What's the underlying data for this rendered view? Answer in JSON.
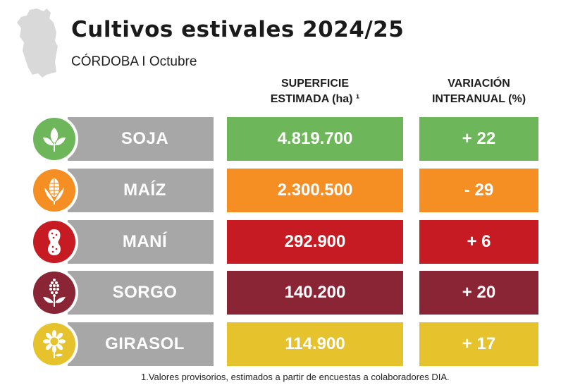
{
  "header": {
    "title": "Cultivos estivales 2024/25",
    "subtitle": "CÓRDOBA I Octubre",
    "map_icon": "cordoba-map-icon"
  },
  "columns": {
    "superficie_line1": "SUPERFICIE",
    "superficie_line2": "ESTIMADA (ha) ¹",
    "variacion_line1": "VARIACIÓN",
    "variacion_line2": "INTERANUAL (%)"
  },
  "crops": [
    {
      "name": "SOJA",
      "superficie": "4.819.700",
      "variacion": "+ 22",
      "color": "#6db75a",
      "icon": "soy-leaves-icon"
    },
    {
      "name": "MAÍZ",
      "superficie": "2.300.500",
      "variacion": "- 29",
      "color": "#f58f23",
      "icon": "corn-icon"
    },
    {
      "name": "MANÍ",
      "superficie": "292.900",
      "variacion": "+ 6",
      "color": "#c61b23",
      "icon": "peanut-icon"
    },
    {
      "name": "SORGO",
      "superficie": "140.200",
      "variacion": "+ 20",
      "color": "#8a2535",
      "icon": "sorghum-icon"
    },
    {
      "name": "GIRASOL",
      "superficie": "114.900",
      "variacion": "+ 17",
      "color": "#e6c22c",
      "icon": "sunflower-icon"
    }
  ],
  "footnote": "1.Valores provisorios, estimados a partir de encuestas a colaboradores DIA."
}
